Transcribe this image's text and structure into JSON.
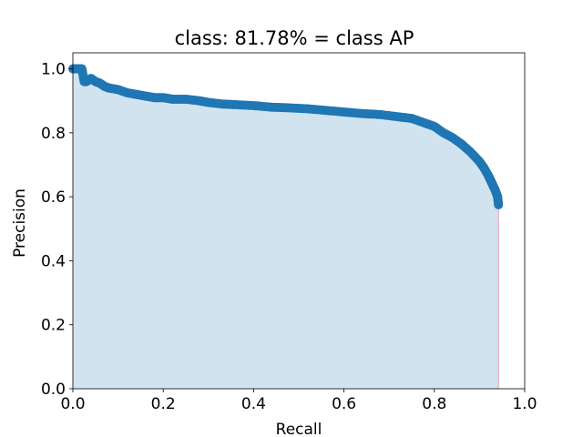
{
  "chart_data": {
    "type": "area",
    "title": "class: 81.78% = class AP",
    "xlabel": "Recall",
    "ylabel": "Precision",
    "xlim": [
      0.0,
      1.0
    ],
    "ylim": [
      0.0,
      1.05
    ],
    "xticks": [
      "0.0",
      "0.2",
      "0.4",
      "0.6",
      "0.8",
      "1.0"
    ],
    "yticks": [
      "0.0",
      "0.2",
      "0.4",
      "0.6",
      "0.8",
      "1.0"
    ],
    "grid": false,
    "colors": {
      "points": "#1f77b4",
      "fill": "#d2e3f0",
      "edge": "#f4b6d2"
    },
    "series": [
      {
        "recall": [
          0.0,
          0.01,
          0.02,
          0.025,
          0.03,
          0.04,
          0.05,
          0.06,
          0.07,
          0.08,
          0.1,
          0.12,
          0.14,
          0.16,
          0.18,
          0.2,
          0.22,
          0.25,
          0.28,
          0.3,
          0.33,
          0.36,
          0.4,
          0.44,
          0.48,
          0.52,
          0.56,
          0.6,
          0.64,
          0.68,
          0.72,
          0.75,
          0.78,
          0.8,
          0.82,
          0.84,
          0.86,
          0.88,
          0.9,
          0.91,
          0.92,
          0.925,
          0.93,
          0.935,
          0.94,
          0.942
        ],
        "precision": [
          1.0,
          1.0,
          1.0,
          0.96,
          0.96,
          0.97,
          0.96,
          0.955,
          0.945,
          0.94,
          0.935,
          0.925,
          0.92,
          0.915,
          0.91,
          0.91,
          0.905,
          0.905,
          0.9,
          0.895,
          0.89,
          0.888,
          0.885,
          0.88,
          0.878,
          0.875,
          0.87,
          0.865,
          0.86,
          0.857,
          0.85,
          0.845,
          0.83,
          0.82,
          0.8,
          0.785,
          0.765,
          0.74,
          0.71,
          0.69,
          0.665,
          0.65,
          0.635,
          0.62,
          0.6,
          0.575
        ]
      }
    ]
  }
}
